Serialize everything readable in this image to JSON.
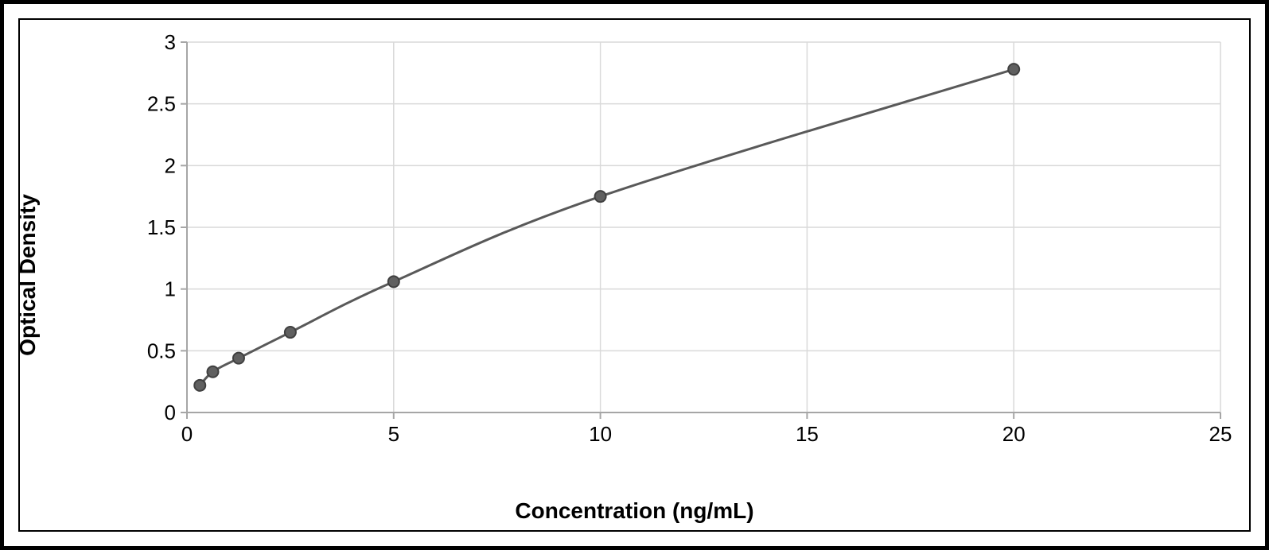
{
  "chart": {
    "type": "line",
    "xlabel": "Concentration (ng/mL)",
    "ylabel": "Optical Density",
    "xlim": [
      0,
      25
    ],
    "ylim": [
      0,
      3
    ],
    "xtick_step": 5,
    "xtick_labels": [
      "0",
      "5",
      "10",
      "15",
      "20",
      "25"
    ],
    "ytick_step": 0.5,
    "ytick_labels": [
      "0",
      "0.5",
      "1",
      "1.5",
      "2",
      "2.5",
      "3"
    ],
    "background_color": "#ffffff",
    "grid_color": "#d9d9d9",
    "axis_color": "#a6a6a6",
    "label_color": "#000000",
    "label_fontsize": 28,
    "tick_fontsize": 26,
    "line_color": "#595959",
    "line_width": 3,
    "marker_fill": "#606060",
    "marker_stroke": "#404040",
    "marker_radius": 7,
    "outer_border_color": "#000000",
    "outer_border_width": 5,
    "inner_border_color": "#000000",
    "inner_border_width": 2,
    "points_x": [
      0.313,
      0.625,
      1.25,
      2.5,
      5,
      10,
      20
    ],
    "points_y": [
      0.22,
      0.33,
      0.44,
      0.65,
      1.06,
      1.75,
      2.78
    ],
    "grid_x": true,
    "grid_y": true
  }
}
